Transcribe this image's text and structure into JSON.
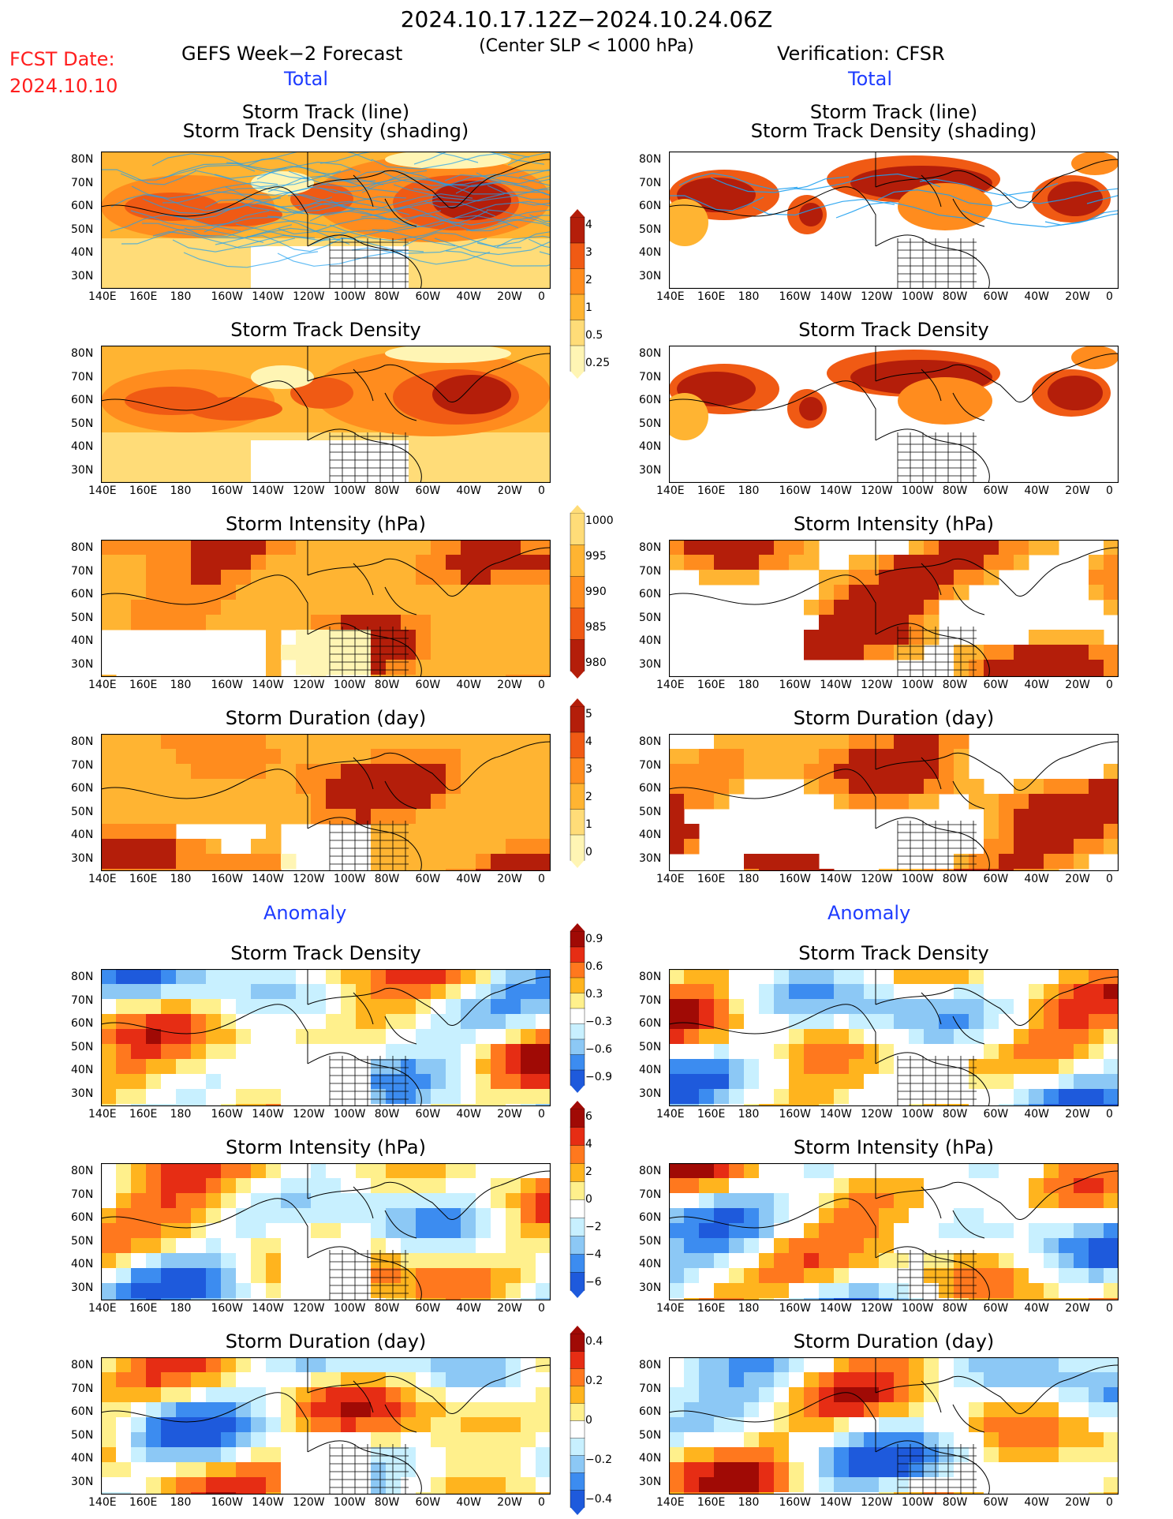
{
  "header": {
    "main_title": "2024.10.17.12Z−2024.10.24.06Z",
    "fcst_label": "FCST Date:",
    "fcst_date": "2024.10.10",
    "left_title": "GEFS Week−2 Forecast",
    "center_sub": "(Center SLP < 1000 hPa)",
    "right_title": "Verification: CFSR",
    "section_total": "Total",
    "section_anomaly": "Anomaly"
  },
  "panel_titles": {
    "track_line": "Storm Track (line)",
    "track_shading": "Storm Track Density (shading)",
    "density": "Storm Track Density",
    "intensity": "Storm Intensity (hPa)",
    "duration": "Storm Duration (day)"
  },
  "axes": {
    "lon_ticks": [
      "140E",
      "160E",
      "180",
      "160W",
      "140W",
      "120W",
      "100W",
      "80W",
      "60W",
      "40W",
      "20W",
      "0"
    ],
    "lat_ticks": [
      "80N",
      "70N",
      "60N",
      "50N",
      "40N",
      "30N"
    ]
  },
  "colorbars": {
    "density_total": [
      "4",
      "3",
      "2",
      "1",
      "0.5",
      "0.25"
    ],
    "intensity_total": [
      "1000",
      "995",
      "990",
      "985",
      "980"
    ],
    "duration_total": [
      "5",
      "4",
      "3",
      "2",
      "1",
      "0"
    ],
    "density_anom": [
      "0.9",
      "0.6",
      "0.3",
      "−0.3",
      "−0.6",
      "−0.9"
    ],
    "intensity_anom": [
      "6",
      "4",
      "2",
      "0",
      "−2",
      "−4",
      "−6"
    ],
    "duration_anom": [
      "0.4",
      "0.2",
      "0",
      "−0.2",
      "−0.4"
    ]
  },
  "colors": {
    "warm": [
      "#fff5b4",
      "#ffdc78",
      "#ffb432",
      "#ff8c1e",
      "#f05a14",
      "#b41e0a",
      "#7a0a05"
    ],
    "anom": [
      "#1e5adc",
      "#3c8cf0",
      "#8cc8f5",
      "#c8f0ff",
      "#ffffff",
      "#fff08c",
      "#ffb41e",
      "#ff781e",
      "#e62d14",
      "#a00a05"
    ],
    "track_line": "#1ea0f0",
    "title_red": "#ff1e1e",
    "section_blue": "#1e3cff"
  }
}
